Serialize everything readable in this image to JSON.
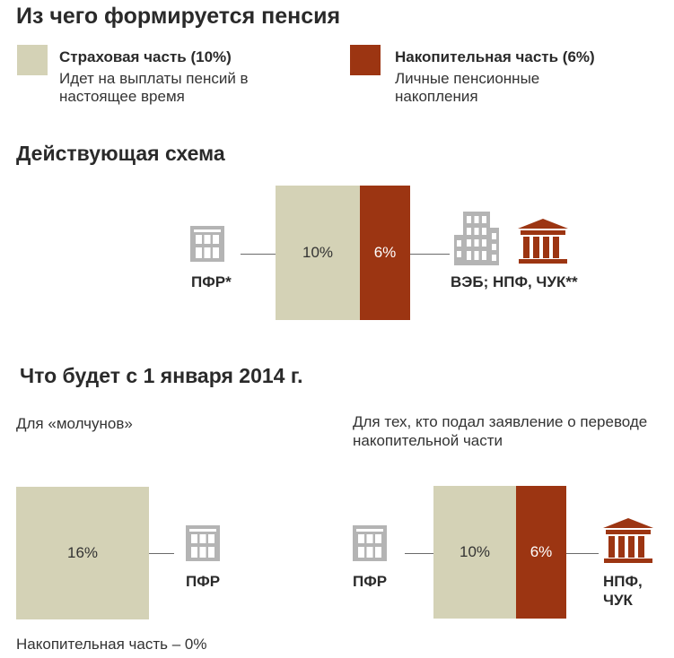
{
  "colors": {
    "insurance": "#d4d2b6",
    "accumulative": "#9c3512",
    "building_icon": "#b4b4b4",
    "bank_icon": "#9c3512",
    "line": "#6a6a6a"
  },
  "header": {
    "title": "Из чего формируется пенсия"
  },
  "legend": {
    "insurance": {
      "title": "Страховая часть (10%)",
      "description": "Идет на выплаты пенсий в настоящее время"
    },
    "accumulative": {
      "title": "Накопительная часть (6%)",
      "description": "Личные пенсионные накопления"
    }
  },
  "current": {
    "title": "Действующая схема",
    "insurance_label": "10%",
    "accumulative_label": "6%",
    "left_entity": "ПФР*",
    "right_entity": "ВЭБ; НПФ, ЧУК**",
    "icons": {
      "left": "building-icon",
      "right": [
        "office-building-icon",
        "bank-icon"
      ]
    }
  },
  "future": {
    "title": "Что будет с 1 января 2014 г.",
    "silent": {
      "caption": "Для «молчунов»",
      "insurance_label": "16%",
      "entity": "ПФР",
      "footnote": "Накопительная часть – 0%"
    },
    "applied": {
      "caption": "Для тех, кто подал заявление о переводе накопительной части",
      "insurance_label": "10%",
      "accumulative_label": "6%",
      "left_entity": "ПФР",
      "right_entity_line1": "НПФ,",
      "right_entity_line2": "ЧУК"
    }
  }
}
